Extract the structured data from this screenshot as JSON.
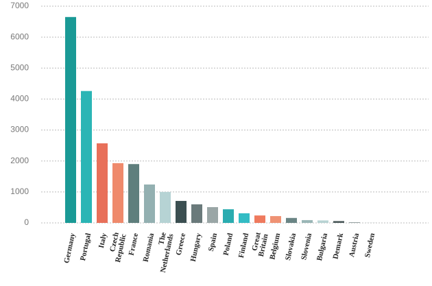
{
  "chart_data": {
    "type": "bar",
    "categories": [
      "Germany",
      "Portugal",
      "Italy",
      "Czech Republic",
      "France",
      "Romania",
      "The Netherlands",
      "Greece",
      "Hungary",
      "Spain",
      "Poland",
      "Finland",
      "Great Britain",
      "Belgium",
      "Slovakia",
      "Slovenia",
      "Bulgaria",
      "Demark",
      "Austria",
      "Sweden"
    ],
    "values": [
      6650,
      4260,
      2570,
      1930,
      1900,
      1240,
      1000,
      710,
      600,
      510,
      440,
      310,
      240,
      220,
      160,
      90,
      80,
      60,
      20,
      5
    ],
    "colors": [
      "#1a9a96",
      "#2bb5b5",
      "#e8705a",
      "#ef8a6c",
      "#5f7f7d",
      "#93b0b1",
      "#b6d3d4",
      "#3b4f51",
      "#6a7a7b",
      "#9aa6a6",
      "#2aacb0",
      "#33bcc4",
      "#ef7a5e",
      "#ef9274",
      "#6a8585",
      "#9ab6b6",
      "#b8d3d3",
      "#4f5d5e",
      "#8b9999",
      "#c4caca"
    ],
    "ylim": [
      0,
      7000
    ],
    "yticks": [
      0,
      1000,
      2000,
      3000,
      4000,
      5000,
      6000,
      7000
    ],
    "grid": true
  }
}
